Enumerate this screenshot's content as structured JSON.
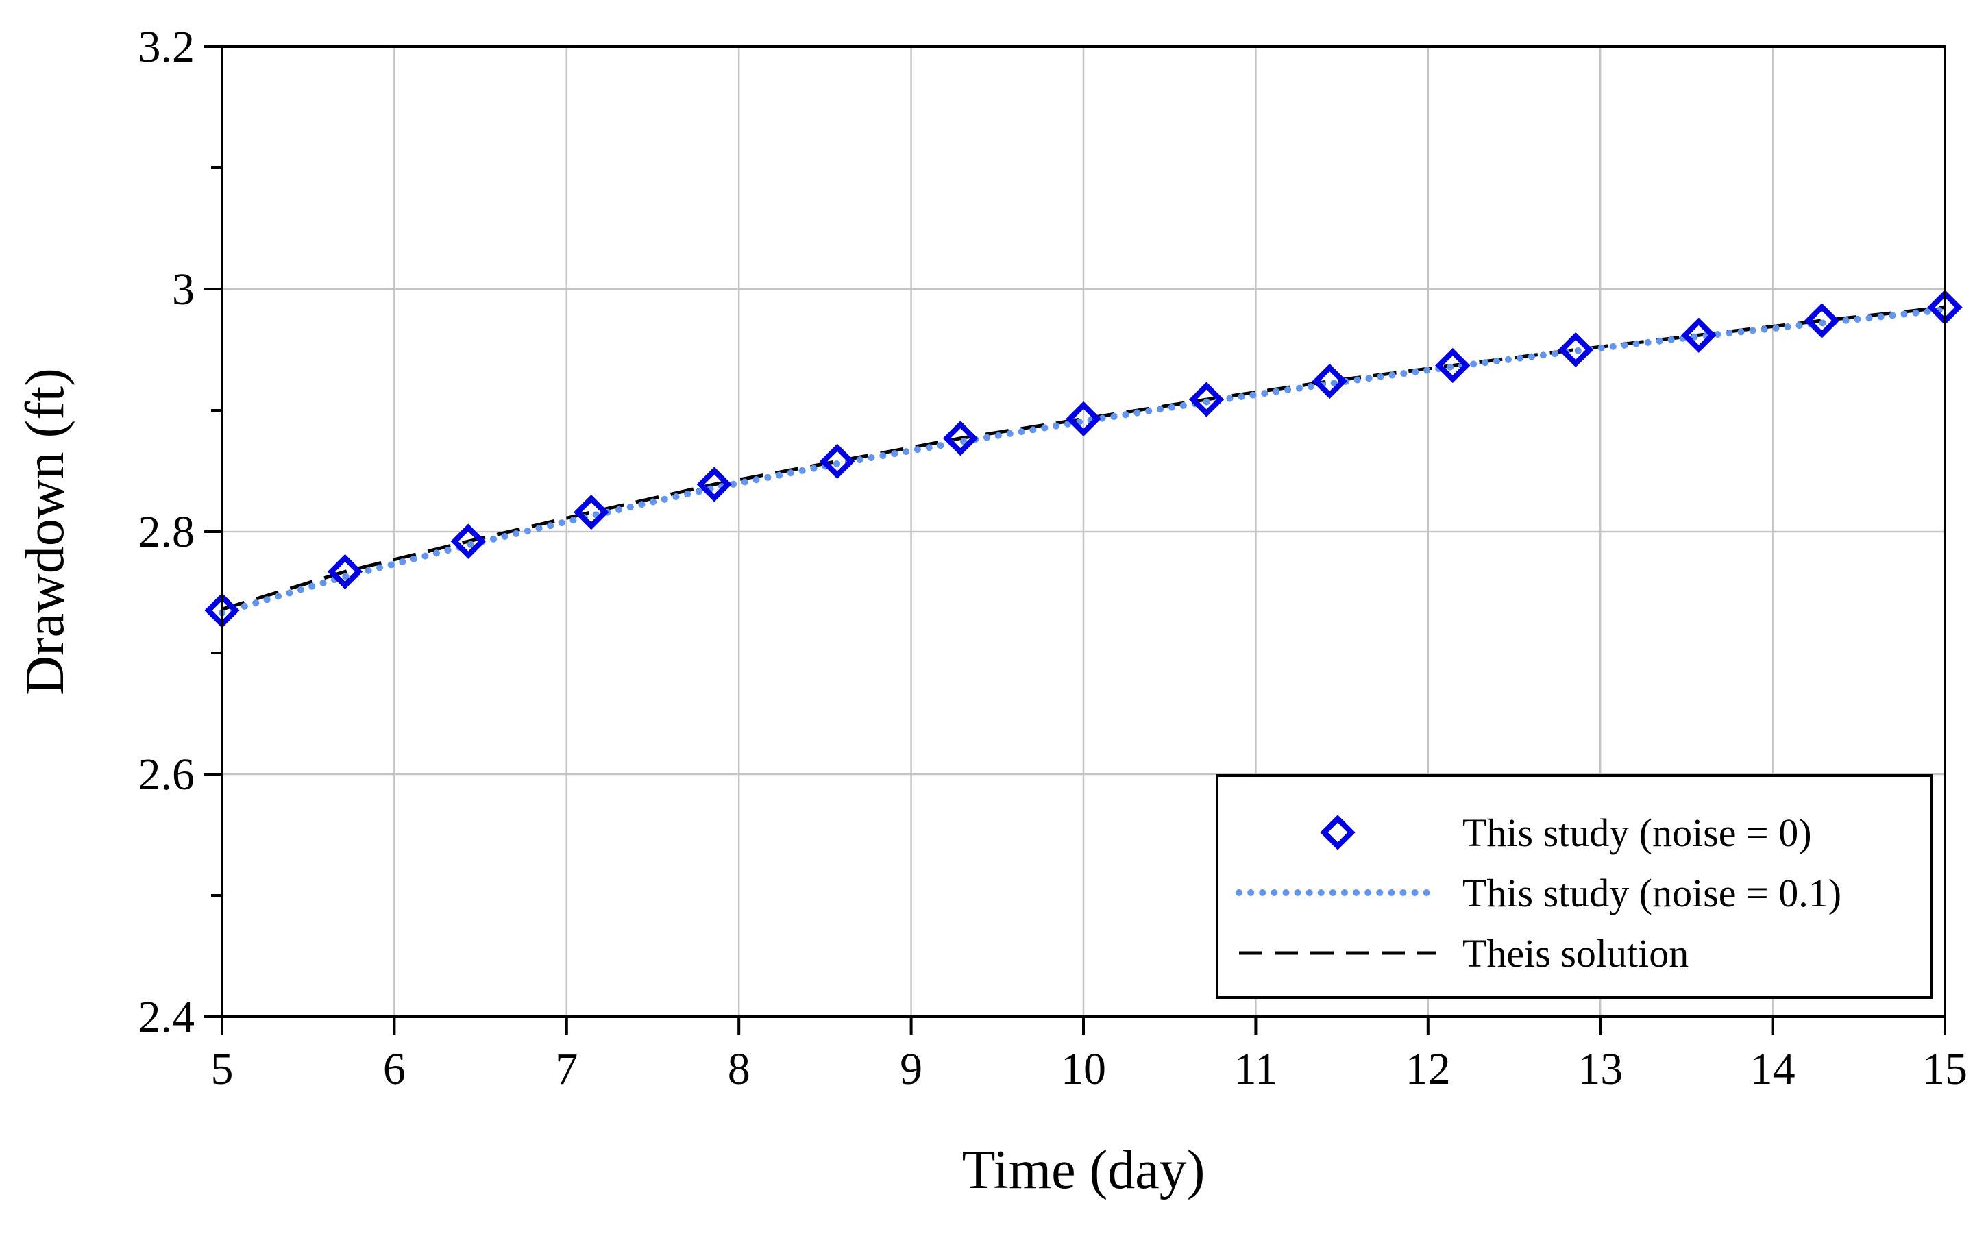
{
  "chart_data": {
    "type": "line",
    "title": "",
    "xlabel": "Time (day)",
    "ylabel": "Drawdown (ft)",
    "xlim": [
      5,
      15
    ],
    "ylim": [
      2.4,
      3.2
    ],
    "xticks": [
      5,
      6,
      7,
      8,
      9,
      10,
      11,
      12,
      13,
      14,
      15
    ],
    "yticks_major": [
      2.4,
      2.6,
      2.8,
      3,
      3.2
    ],
    "yticks_minor": [
      2.5,
      2.7,
      2.9,
      3.1
    ],
    "ytick_labels": [
      "2.4",
      "2.6",
      "2.8",
      "3",
      "3.2"
    ],
    "grid": true,
    "legend_position": "bottom-right",
    "series": [
      {
        "name": "This study (noise = 0)",
        "style": "markers",
        "marker": "diamond",
        "color": "#0000E0",
        "x": [
          5,
          5.714,
          6.429,
          7.143,
          7.857,
          8.571,
          9.286,
          10,
          10.714,
          11.429,
          12.143,
          12.857,
          13.571,
          14.286,
          15
        ],
        "y": [
          2.735,
          2.767,
          2.792,
          2.816,
          2.839,
          2.858,
          2.877,
          2.893,
          2.909,
          2.924,
          2.937,
          2.95,
          2.962,
          2.974,
          2.985
        ]
      },
      {
        "name": "This study (noise = 0.1)",
        "style": "dotted",
        "color": "#6495ED",
        "x": [
          5,
          5.714,
          6.429,
          7.143,
          7.857,
          8.571,
          9.286,
          10,
          10.714,
          11.429,
          12.143,
          12.857,
          13.571,
          14.286,
          15
        ],
        "y": [
          2.733,
          2.763,
          2.789,
          2.813,
          2.836,
          2.856,
          2.874,
          2.891,
          2.907,
          2.922,
          2.936,
          2.949,
          2.961,
          2.972,
          2.983
        ]
      },
      {
        "name": "Theis solution",
        "style": "dashed",
        "color": "#000000",
        "x": [
          5,
          5.714,
          6.429,
          7.143,
          7.857,
          8.571,
          9.286,
          10,
          10.714,
          11.429,
          12.143,
          12.857,
          13.571,
          14.286,
          15
        ],
        "y": [
          2.736,
          2.767,
          2.792,
          2.816,
          2.839,
          2.858,
          2.877,
          2.893,
          2.909,
          2.924,
          2.937,
          2.95,
          2.962,
          2.974,
          2.985
        ]
      }
    ]
  }
}
